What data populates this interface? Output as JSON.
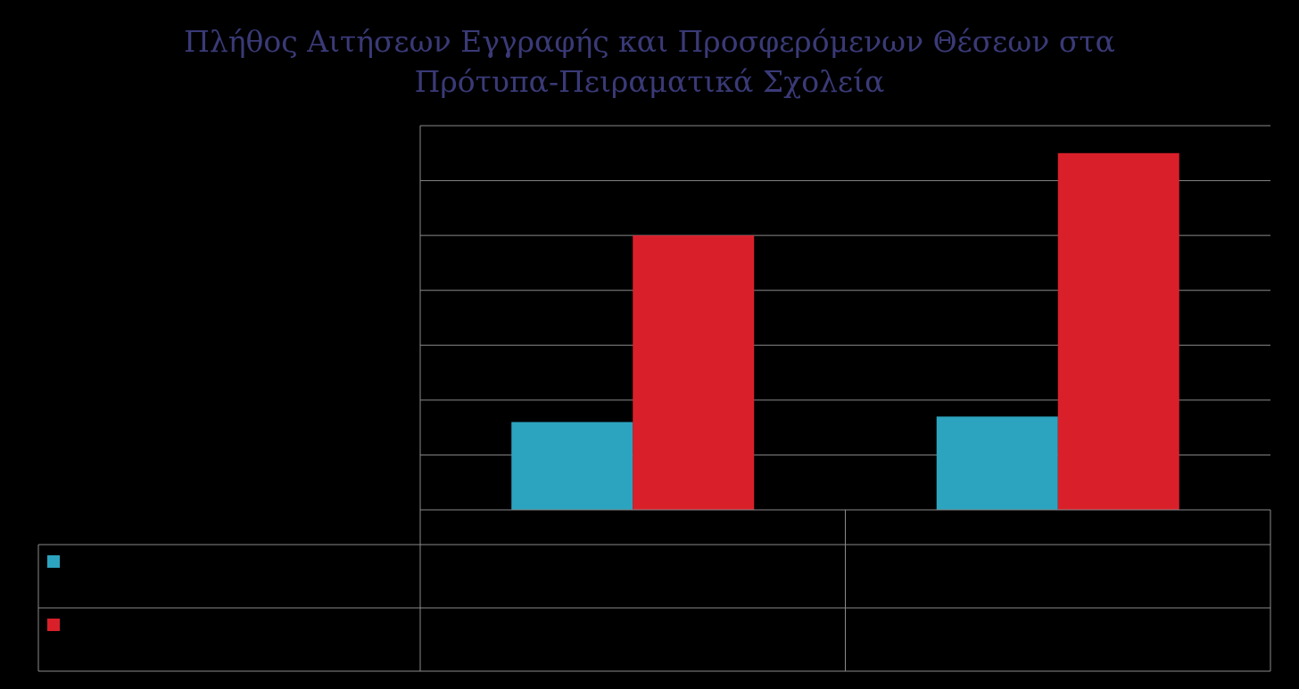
{
  "chart_data": {
    "type": "bar",
    "title": "Πλήθος Αιτήσεων Εγγραφής και Προσφερόμενων Θέσεων στα Πρότυπα-Πειραματικά Σχολεία",
    "categories": [
      null,
      null
    ],
    "series": [
      {
        "color": "#2ca3bf",
        "values": [
          1.6,
          1.7
        ]
      },
      {
        "color": "#d9202a",
        "values": [
          5.0,
          6.5
        ]
      }
    ],
    "ylim": [
      0,
      7
    ],
    "yticks": [
      0,
      1,
      2,
      3,
      4,
      5,
      6,
      7
    ],
    "grid": true
  }
}
